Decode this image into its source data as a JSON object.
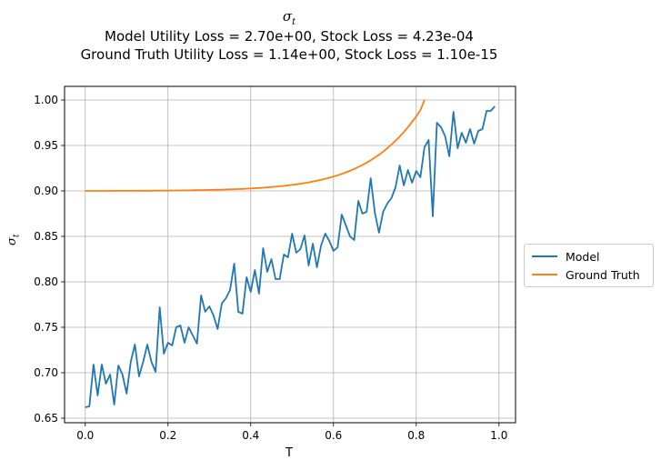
{
  "chart_data": {
    "type": "line",
    "title_symbol": "σ",
    "title_symbol_sub": "t",
    "title_line2": "Model Utility Loss = 2.70e+00, Stock Loss = 4.23e-04",
    "title_line3": "Ground Truth Utility Loss = 1.14e+00, Stock Loss = 1.10e-15",
    "xlabel": "T",
    "ylabel_symbol": "σ",
    "ylabel_sub": "t",
    "xlim": [
      -0.05,
      1.04
    ],
    "ylim": [
      0.645,
      1.015
    ],
    "xticks": [
      0.0,
      0.2,
      0.4,
      0.6,
      0.8,
      1.0
    ],
    "xtick_labels": [
      "0.0",
      "0.2",
      "0.4",
      "0.6",
      "0.8",
      "1.0"
    ],
    "yticks": [
      0.65,
      0.7,
      0.75,
      0.8,
      0.85,
      0.9,
      0.95,
      1.0
    ],
    "ytick_labels": [
      "0.65",
      "0.70",
      "0.75",
      "0.80",
      "0.85",
      "0.90",
      "0.95",
      "1.00"
    ],
    "grid": true,
    "legend_position": "right, outside plot",
    "series": [
      {
        "name": "Model",
        "color": "#1f77b4",
        "x_start": 0.0,
        "x_step": 0.01,
        "values": [
          0.662,
          0.663,
          0.709,
          0.675,
          0.709,
          0.688,
          0.698,
          0.665,
          0.708,
          0.698,
          0.677,
          0.712,
          0.731,
          0.696,
          0.712,
          0.731,
          0.712,
          0.701,
          0.772,
          0.721,
          0.733,
          0.73,
          0.75,
          0.752,
          0.733,
          0.75,
          0.741,
          0.732,
          0.785,
          0.767,
          0.773,
          0.763,
          0.748,
          0.776,
          0.782,
          0.791,
          0.82,
          0.767,
          0.765,
          0.805,
          0.789,
          0.813,
          0.787,
          0.837,
          0.811,
          0.825,
          0.803,
          0.803,
          0.83,
          0.827,
          0.853,
          0.832,
          0.836,
          0.851,
          0.818,
          0.842,
          0.816,
          0.84,
          0.853,
          0.845,
          0.834,
          0.838,
          0.874,
          0.862,
          0.85,
          0.846,
          0.889,
          0.875,
          0.877,
          0.914,
          0.876,
          0.854,
          0.877,
          0.886,
          0.892,
          0.904,
          0.928,
          0.906,
          0.923,
          0.909,
          0.922,
          0.915,
          0.948,
          0.956,
          0.872,
          0.975,
          0.97,
          0.96,
          0.938,
          0.987,
          0.947,
          0.964,
          0.953,
          0.968,
          0.952,
          0.966,
          0.968,
          0.988,
          0.988,
          0.993
        ]
      },
      {
        "name": "Ground Truth",
        "color": "#ff7f0e",
        "x_start": 0.0,
        "x_step": 0.01,
        "values": [
          0.9,
          0.9,
          0.9,
          0.9,
          0.9,
          0.9,
          0.9,
          0.9001,
          0.9001,
          0.9001,
          0.9001,
          0.9001,
          0.9001,
          0.9002,
          0.9002,
          0.9002,
          0.9002,
          0.9003,
          0.9003,
          0.9003,
          0.9004,
          0.9004,
          0.9005,
          0.9005,
          0.9006,
          0.9006,
          0.9007,
          0.9008,
          0.9009,
          0.901,
          0.9011,
          0.9012,
          0.9013,
          0.9014,
          0.9016,
          0.9017,
          0.9019,
          0.902,
          0.9022,
          0.9025,
          0.9027,
          0.903,
          0.9032,
          0.9035,
          0.9039,
          0.9042,
          0.9046,
          0.9051,
          0.9055,
          0.9061,
          0.9066,
          0.9072,
          0.9079,
          0.9086,
          0.9094,
          0.9103,
          0.9112,
          0.9122,
          0.9133,
          0.9145,
          0.9158,
          0.9172,
          0.9187,
          0.9204,
          0.9222,
          0.9241,
          0.9263,
          0.9285,
          0.931,
          0.9337,
          0.9367,
          0.9398,
          0.9432,
          0.9469,
          0.9509,
          0.9552,
          0.9598,
          0.9648,
          0.9701,
          0.9759,
          0.982,
          0.9887,
          1.0
        ]
      }
    ]
  }
}
